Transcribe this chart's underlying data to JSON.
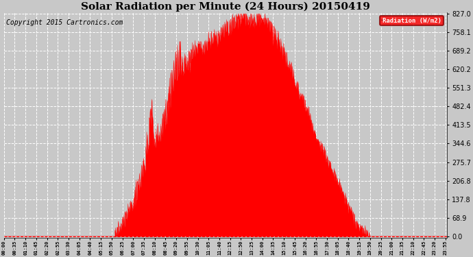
{
  "title": "Solar Radiation per Minute (24 Hours) 20150419",
  "copyright": "Copyright 2015 Cartronics.com",
  "legend_label": "Radiation (W/m2)",
  "yticks": [
    0.0,
    68.9,
    137.8,
    206.8,
    275.7,
    344.6,
    413.5,
    482.4,
    551.3,
    620.2,
    689.2,
    758.1,
    827.0
  ],
  "ymax": 827.0,
  "fill_color": "#ff0000",
  "line_color": "#ff0000",
  "bg_color": "#c8c8c8",
  "grid_color": "#ffffff",
  "title_fontsize": 11,
  "copyright_fontsize": 7,
  "xtick_interval_minutes": 35,
  "total_minutes": 1440
}
